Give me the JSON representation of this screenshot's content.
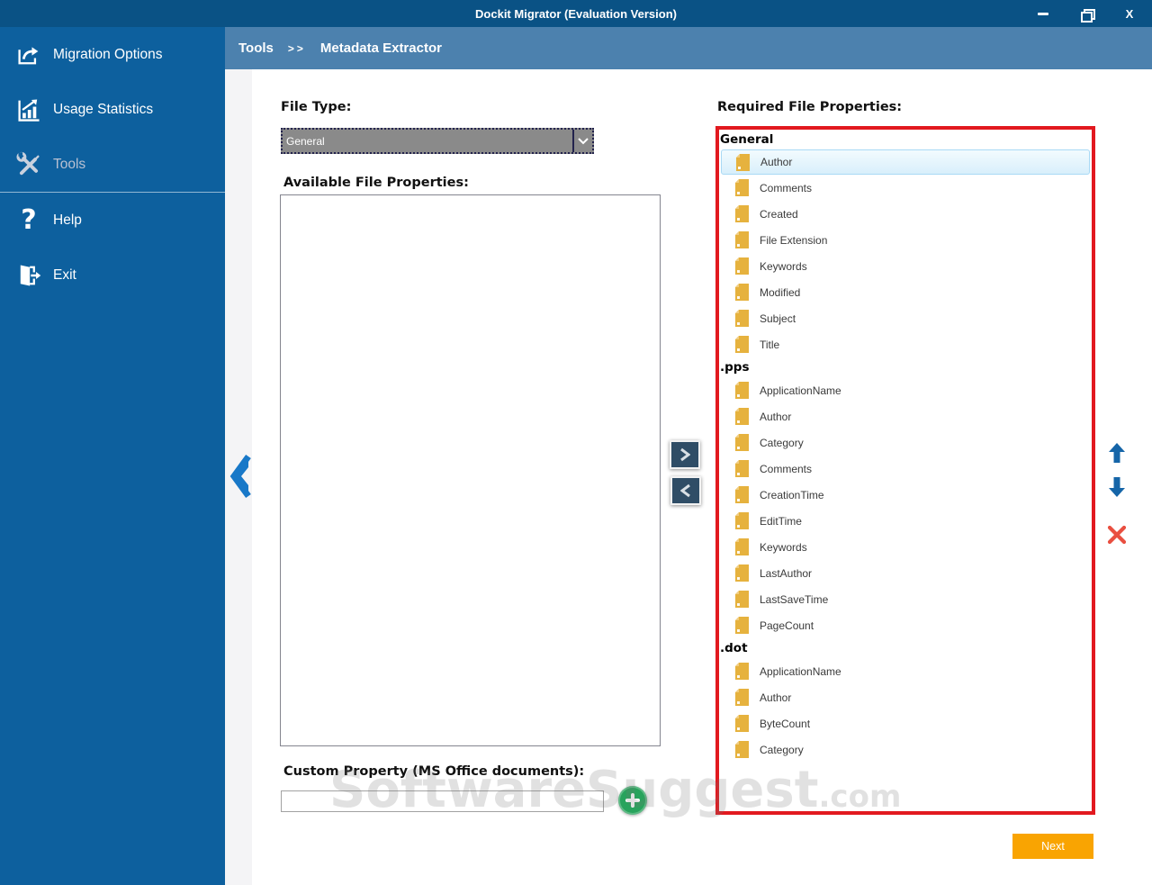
{
  "window": {
    "title": "Dockit Migrator (Evaluation Version)",
    "controls": {
      "minimize": "minimize",
      "restore": "restore",
      "close": "X"
    }
  },
  "sidebar": {
    "items": [
      {
        "label": "Migration Options",
        "icon": "migration-options-icon"
      },
      {
        "label": "Usage Statistics",
        "icon": "usage-statistics-icon"
      },
      {
        "label": "Tools",
        "icon": "tools-icon"
      },
      {
        "label": "Help",
        "icon": "help-icon"
      },
      {
        "label": "Exit",
        "icon": "exit-icon"
      }
    ]
  },
  "breadcrumb": {
    "section": "Tools",
    "separator": ">>",
    "page": "Metadata Extractor"
  },
  "main": {
    "file_type_label": "File Type:",
    "file_type_value": "General",
    "available_label": "Available File Properties:",
    "required_label": "Required File Properties:",
    "custom_property_label": "Custom Property (MS Office documents):",
    "custom_property_value": "",
    "next_label": "Next"
  },
  "required_list": {
    "groups": [
      {
        "name": "General",
        "selected": "Author",
        "items": [
          "Author",
          "Comments",
          "Created",
          "File Extension",
          "Keywords",
          "Modified",
          "Subject",
          "Title"
        ]
      },
      {
        "name": ".pps",
        "items": [
          "ApplicationName",
          "Author",
          "Category",
          "Comments",
          "CreationTime",
          "EditTime",
          "Keywords",
          "LastAuthor",
          "LastSaveTime",
          "PageCount"
        ]
      },
      {
        "name": ".dot",
        "items": [
          "ApplicationName",
          "Author",
          "ByteCount",
          "Category"
        ]
      }
    ]
  },
  "watermark": {
    "text": "SoftwareSuggest",
    "suffix": ".com"
  },
  "colors": {
    "titlebar": "#0a5285",
    "sidebar": "#0d609e",
    "breadcrumb": "#4c81ae",
    "highlight_border": "#e2191f",
    "accent_orange": "#f9a402",
    "accent_green": "#28a35c",
    "doc_icon": "#e6b23e",
    "selection": "#d8effb"
  }
}
